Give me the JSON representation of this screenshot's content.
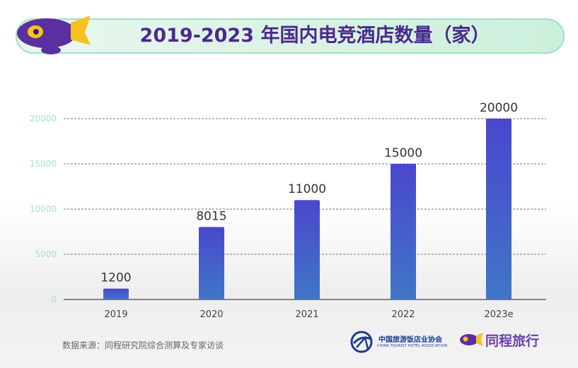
{
  "header": {
    "title": "2019-2023 年国内电竞酒店数量（家）"
  },
  "chart_data": {
    "type": "bar",
    "title": "2019-2023 年国内电竞酒店数量（家）",
    "categories": [
      "2019",
      "2020",
      "2021",
      "2022",
      "2023e"
    ],
    "values": [
      1200,
      8015,
      11000,
      15000,
      20000
    ],
    "data_labels": [
      "1200",
      "8015",
      "11000",
      "15000",
      "20000"
    ],
    "y_ticks": [
      0,
      5000,
      10000,
      15000,
      20000
    ],
    "y_tick_labels": [
      "0",
      "5000",
      "10000",
      "15000",
      "20000"
    ],
    "ylim": [
      0,
      20000
    ],
    "xlabel": "",
    "ylabel": "",
    "grid": true,
    "colors": {
      "bar_top": "#4a47cc",
      "bar_bottom": "#3f76c8",
      "grid": "#555555",
      "tick": "#a7e3c8",
      "label": "#333333"
    }
  },
  "footer": {
    "source": "数据来源：同程研究院综合测算及专家访谈",
    "association_name": "中国旅游饭店业协会",
    "association_en": "CHINA TOURIST HOTEL ASSOCIATION",
    "brand_name": "同程旅行"
  },
  "colors": {
    "title": "#4a2a8c",
    "banner_bg": "#d6f2e2",
    "brand_purple": "#6b3fa8",
    "brand_yellow": "#f7c324"
  }
}
